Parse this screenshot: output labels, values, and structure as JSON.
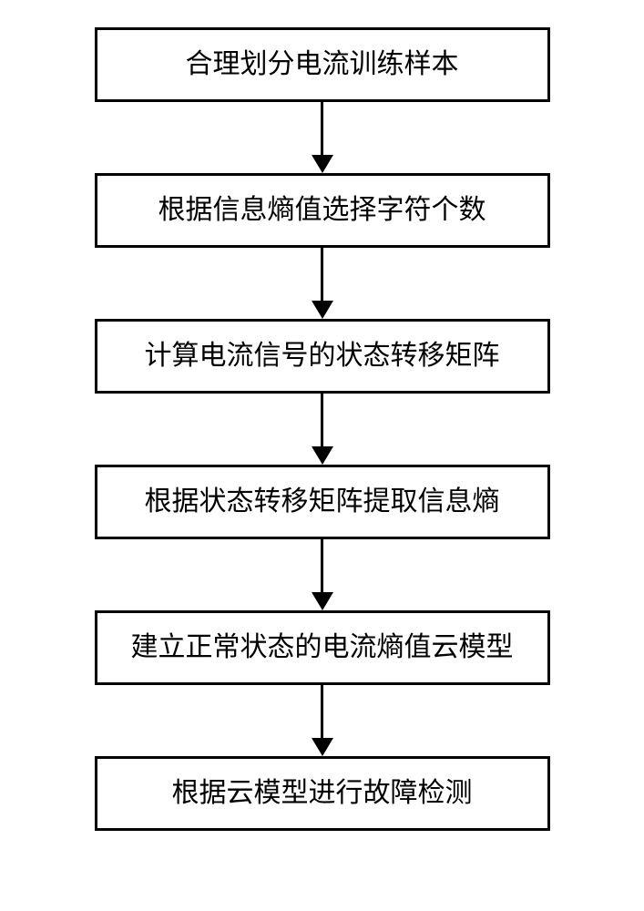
{
  "flowchart": {
    "type": "flowchart",
    "direction": "vertical",
    "background_color": "#ffffff",
    "node_border_color": "#000000",
    "node_border_width": 3,
    "node_background_color": "#ffffff",
    "node_text_color": "#000000",
    "node_font_size": 30,
    "node_font_family": "SimSun",
    "node_padding_vertical": 20,
    "node_padding_horizontal": 30,
    "node_min_width": 500,
    "arrow_color": "#000000",
    "arrow_line_width": 3,
    "arrow_line_height": 58,
    "arrow_head_width": 24,
    "arrow_head_height": 20,
    "nodes": [
      {
        "id": "step1",
        "label": "合理划分电流训练样本"
      },
      {
        "id": "step2",
        "label": "根据信息熵值选择字符个数"
      },
      {
        "id": "step3",
        "label": "计算电流信号的状态转移矩阵"
      },
      {
        "id": "step4",
        "label": "根据状态转移矩阵提取信息熵"
      },
      {
        "id": "step5",
        "label": "建立正常状态的电流熵值云模型"
      },
      {
        "id": "step6",
        "label": "根据云模型进行故障检测"
      }
    ],
    "edges": [
      {
        "from": "step1",
        "to": "step2"
      },
      {
        "from": "step2",
        "to": "step3"
      },
      {
        "from": "step3",
        "to": "step4"
      },
      {
        "from": "step4",
        "to": "step5"
      },
      {
        "from": "step5",
        "to": "step6"
      }
    ]
  }
}
